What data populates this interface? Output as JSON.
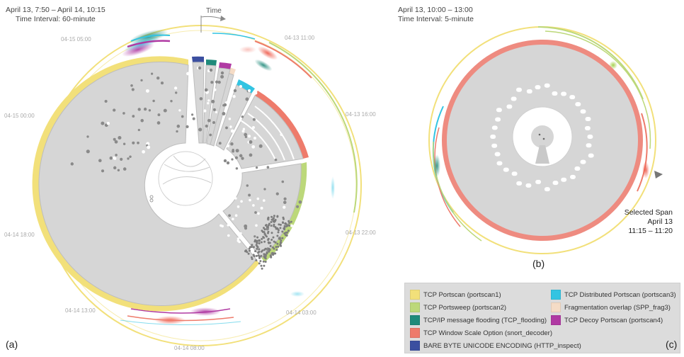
{
  "panel_a": {
    "header_line1": "April 13, 7:50 – April 14, 10:15",
    "header_line2": "Time Interval: 60-minute",
    "time_label": "Time",
    "ticks": [
      "04-13 11:00",
      "04-13 16:00",
      "04-13 22:00",
      "04-14 03:00",
      "04-14 08:00",
      "04-14 13:00",
      "04-14 18:00",
      "04-15 00:00",
      "04-15 05:00"
    ],
    "label": "(a)"
  },
  "panel_b": {
    "header_line1": "April 13, 10:00 – 13:00",
    "header_line2": "Time Interval: 5-minute",
    "selected_span": [
      "Selected Span",
      "April 13",
      "11:15 – 11:20"
    ],
    "label": "(b)"
  },
  "legend": {
    "label": "(c)",
    "items": [
      {
        "text": "TCP Portscan (portscan1)",
        "color": "#f2e07a"
      },
      {
        "text": "TCP Portsweep (portscan2)",
        "color": "#bcd87a"
      },
      {
        "text": "TCP/IP message flooding (TCP_flooding)",
        "color": "#1f8a7a"
      },
      {
        "text": "TCP Window Scale Option (snort_decoder)",
        "color": "#ee7b6b"
      },
      {
        "text": "BARE BYTE UNICODE ENCODING (HTTP_inspect)",
        "color": "#3b4fa0"
      },
      {
        "text": "TCP Distributed Portscan (portscan3)",
        "color": "#33c4e2"
      },
      {
        "text": "Fragmentation overlap (SPP_frag3)",
        "color": "#f5dcc6"
      },
      {
        "text": "TCP Decoy Portscan (portscan4)",
        "color": "#b03aa3"
      }
    ]
  }
}
